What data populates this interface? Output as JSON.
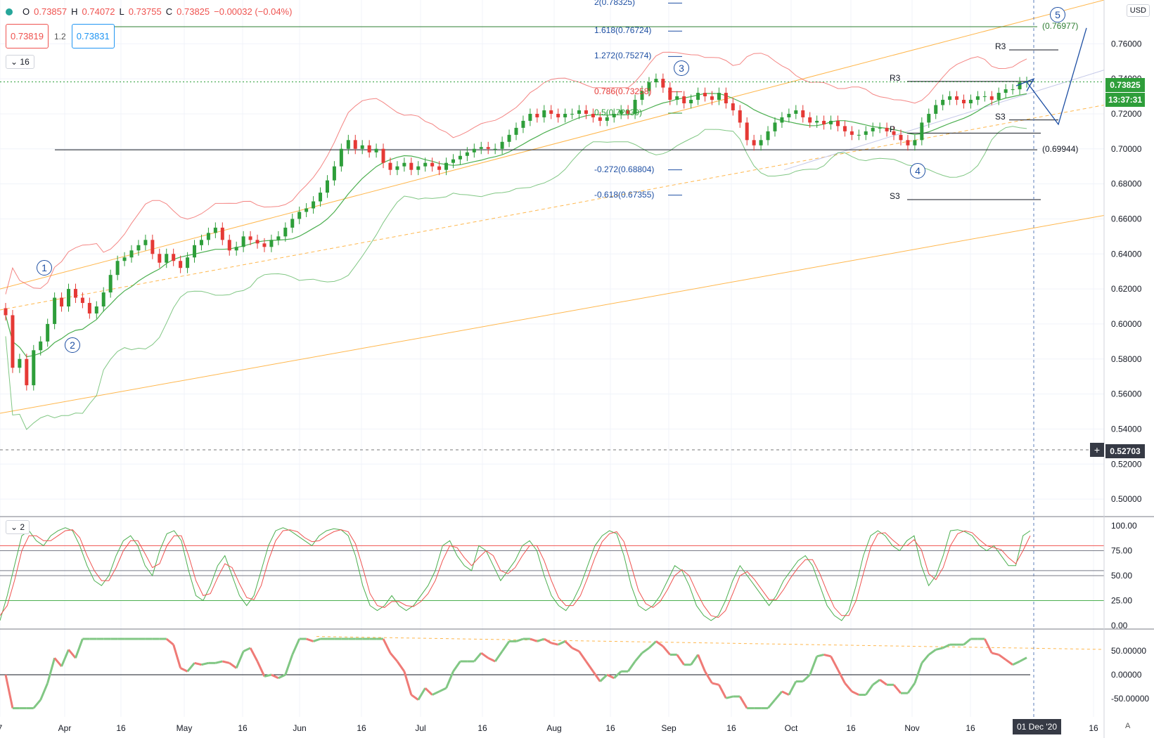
{
  "header": {
    "open_label": "O",
    "open": "0.73857",
    "high_label": "H",
    "high": "0.74072",
    "low_label": "L",
    "low": "0.73755",
    "close_label": "C",
    "close": "0.73825",
    "change": "−0.00032 (−0.04%)",
    "sell": "0.73819",
    "spread": "1.2",
    "buy": "0.73831",
    "main_legend": "16",
    "osc1_legend": "2",
    "currency": "USD",
    "auto": "A"
  },
  "colors": {
    "up": "#26a69a",
    "down": "#ef5350",
    "candle_up": "#2e9e3a",
    "candle_down": "#e53935",
    "band_red": "#ef5350",
    "band_green": "#4caf50",
    "channel": "#ffb74d",
    "wave": "#1e4fa3"
  },
  "chart_data": {
    "type": "candlestick",
    "price_axis": {
      "min": 0.49,
      "max": 0.78,
      "ticks": [
        "0.76000",
        "0.74000",
        "0.72000",
        "0.70000",
        "0.68000",
        "0.66000",
        "0.64000",
        "0.62000",
        "0.60000",
        "0.58000",
        "0.56000",
        "0.54000",
        "0.52000",
        "0.50000"
      ]
    },
    "time_axis": [
      "7",
      "Apr",
      "16",
      "May",
      "16",
      "Jun",
      "16",
      "Jul",
      "16",
      "Aug",
      "16",
      "Sep",
      "16",
      "Oct",
      "16",
      "Nov",
      "16",
      "16"
    ],
    "closes": [
      0.605,
      0.575,
      0.58,
      0.565,
      0.585,
      0.59,
      0.6,
      0.615,
      0.61,
      0.62,
      0.615,
      0.612,
      0.606,
      0.61,
      0.618,
      0.628,
      0.636,
      0.638,
      0.642,
      0.645,
      0.648,
      0.64,
      0.635,
      0.64,
      0.636,
      0.632,
      0.638,
      0.645,
      0.648,
      0.652,
      0.655,
      0.648,
      0.642,
      0.644,
      0.65,
      0.648,
      0.646,
      0.644,
      0.648,
      0.65,
      0.655,
      0.66,
      0.664,
      0.666,
      0.67,
      0.675,
      0.682,
      0.69,
      0.7,
      0.705,
      0.7,
      0.702,
      0.698,
      0.7,
      0.692,
      0.688,
      0.69,
      0.692,
      0.688,
      0.69,
      0.692,
      0.69,
      0.688,
      0.692,
      0.694,
      0.696,
      0.698,
      0.7,
      0.701,
      0.7,
      0.7,
      0.704,
      0.708,
      0.712,
      0.716,
      0.72,
      0.718,
      0.722,
      0.72,
      0.718,
      0.72,
      0.72,
      0.722,
      0.72,
      0.718,
      0.716,
      0.718,
      0.72,
      0.722,
      0.72,
      0.728,
      0.733,
      0.738,
      0.74,
      0.735,
      0.728,
      0.73,
      0.726,
      0.728,
      0.732,
      0.73,
      0.728,
      0.732,
      0.726,
      0.722,
      0.715,
      0.705,
      0.702,
      0.705,
      0.71,
      0.715,
      0.718,
      0.72,
      0.722,
      0.718,
      0.715,
      0.716,
      0.714,
      0.716,
      0.713,
      0.71,
      0.708,
      0.708,
      0.71,
      0.712,
      0.712,
      0.71,
      0.708,
      0.705,
      0.702,
      0.705,
      0.715,
      0.72,
      0.725,
      0.728,
      0.73,
      0.728,
      0.726,
      0.728,
      0.73,
      0.73,
      0.728,
      0.732,
      0.734,
      0.734,
      0.738,
      0.7382
    ],
    "pivot_labels": [
      "R3",
      "R3",
      "S3",
      "S3",
      "P"
    ],
    "fib_levels": [
      {
        "label": "2(0.78325)",
        "value": 0.78325
      },
      {
        "label": "1.618(0.76724)",
        "value": 0.76724
      },
      {
        "label": "1.272(0.75274)",
        "value": 0.75274
      },
      {
        "label": "0.786(0.73258)",
        "value": 0.73258
      },
      {
        "label": "0.5(0.72039)",
        "value": 0.72039
      },
      {
        "label": "-0.272(0.68804)",
        "value": 0.68804
      },
      {
        "label": "-0.618(0.67355)",
        "value": 0.67355
      }
    ],
    "hlines": [
      {
        "label": "(0.76977)",
        "value": 0.76977
      },
      {
        "label": "(0.69944)",
        "value": 0.69944
      }
    ],
    "waves": [
      "1",
      "2",
      "3",
      "4",
      "5"
    ],
    "last_price": "0.73825",
    "countdown": "13:37:31",
    "crosshair_price": "0.52703",
    "crosshair_date": "01 Dec '20",
    "stoch_axis": [
      "100.00",
      "75.00",
      "50.00",
      "25.00",
      "0.00"
    ],
    "stoch_levels": [
      80,
      75,
      55,
      50,
      25
    ],
    "stoch_k": [
      5,
      30,
      60,
      90,
      95,
      85,
      80,
      90,
      95,
      98,
      95,
      80,
      60,
      45,
      40,
      50,
      70,
      85,
      90,
      80,
      60,
      50,
      75,
      92,
      95,
      85,
      55,
      30,
      25,
      40,
      60,
      70,
      50,
      30,
      20,
      30,
      55,
      80,
      95,
      98,
      95,
      90,
      85,
      80,
      90,
      95,
      97,
      96,
      90,
      70,
      40,
      20,
      15,
      20,
      30,
      20,
      15,
      20,
      30,
      40,
      55,
      80,
      85,
      70,
      60,
      55,
      80,
      75,
      60,
      45,
      55,
      65,
      80,
      85,
      75,
      50,
      30,
      20,
      15,
      25,
      40,
      60,
      80,
      90,
      95,
      92,
      70,
      40,
      20,
      15,
      20,
      30,
      45,
      60,
      55,
      40,
      20,
      10,
      5,
      10,
      25,
      45,
      60,
      50,
      40,
      30,
      20,
      30,
      45,
      55,
      65,
      70,
      60,
      40,
      20,
      10,
      5,
      15,
      40,
      70,
      90,
      95,
      90,
      80,
      75,
      85,
      90,
      60,
      40,
      50,
      70,
      95,
      96,
      94,
      90,
      80,
      75,
      80,
      70,
      60,
      60,
      90,
      95
    ],
    "stoch_d": [
      10,
      20,
      45,
      75,
      90,
      90,
      85,
      85,
      90,
      95,
      96,
      88,
      70,
      55,
      45,
      45,
      58,
      75,
      85,
      85,
      72,
      58,
      62,
      80,
      90,
      90,
      70,
      45,
      30,
      32,
      48,
      62,
      58,
      42,
      28,
      26,
      40,
      65,
      85,
      95,
      96,
      94,
      88,
      84,
      85,
      90,
      94,
      96,
      94,
      82,
      58,
      32,
      20,
      18,
      24,
      24,
      20,
      19,
      24,
      32,
      45,
      65,
      80,
      78,
      68,
      60,
      68,
      75,
      70,
      55,
      52,
      58,
      70,
      80,
      80,
      65,
      45,
      28,
      20,
      20,
      30,
      48,
      68,
      84,
      92,
      94,
      84,
      60,
      35,
      22,
      18,
      24,
      36,
      50,
      56,
      50,
      34,
      20,
      10,
      8,
      15,
      32,
      50,
      54,
      46,
      36,
      26,
      26,
      36,
      48,
      58,
      66,
      66,
      52,
      34,
      18,
      10,
      10,
      25,
      52,
      78,
      92,
      93,
      86,
      80,
      80,
      86,
      76,
      52,
      46,
      58,
      80,
      92,
      95,
      93,
      86,
      80,
      78,
      76,
      68,
      62,
      75,
      90
    ]
  },
  "osc2_axis": [
    "50.00000",
    "0.00000",
    "-50.00000"
  ]
}
